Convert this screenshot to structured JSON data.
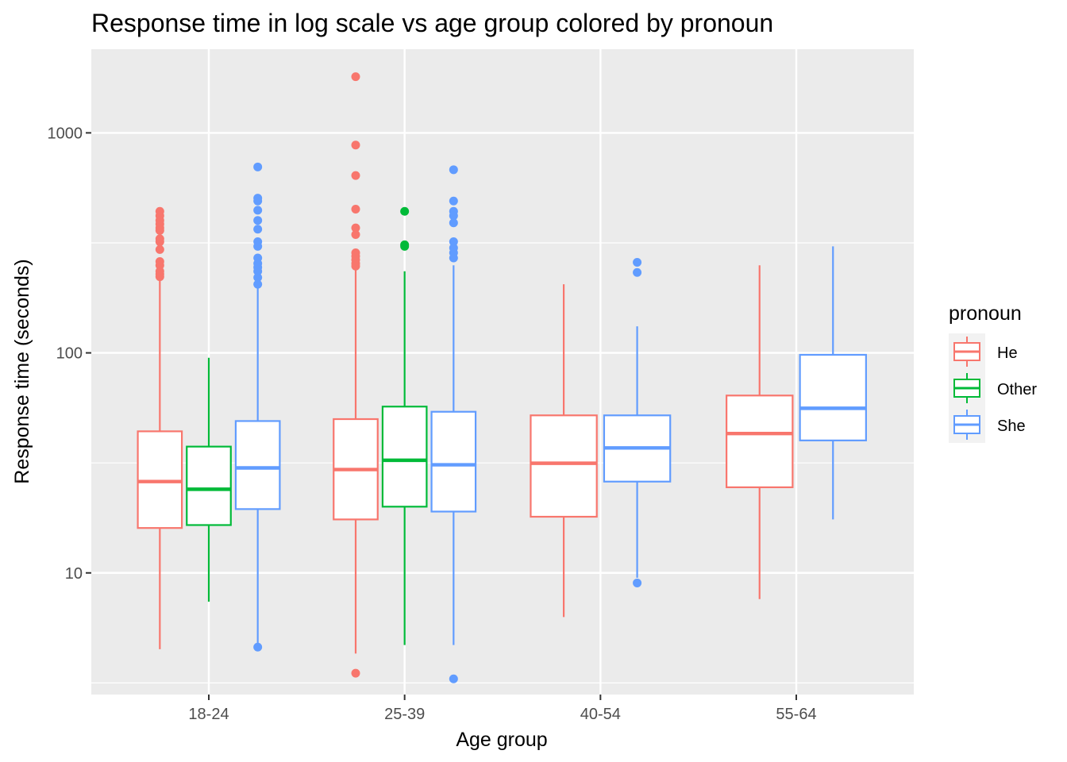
{
  "chart_data": {
    "type": "boxplot",
    "title": "Response time in log scale vs age group colored by pronoun",
    "xlabel": "Age group",
    "ylabel": "Response time (seconds)",
    "y_scale": "log10",
    "ylim": [
      2.8,
      2400
    ],
    "y_ticks": [
      10,
      100,
      1000
    ],
    "y_tick_labels": [
      "10",
      "100",
      "1000"
    ],
    "grid": true,
    "categories": [
      "18-24",
      "25-39",
      "40-54",
      "55-64"
    ],
    "legend": {
      "title": "pronoun",
      "position": "right"
    },
    "series": [
      {
        "name": "He",
        "color": "#F8766D",
        "boxes": [
          {
            "category": "18-24",
            "q1": 16,
            "median": 26,
            "q3": 44,
            "whisker_low": 4.5,
            "whisker_high": 215,
            "outliers": [
              440,
              420,
              400,
              385,
              370,
              360,
              330,
              320,
              295,
              260,
              250,
              235,
              228,
              222
            ]
          },
          {
            "category": "25-39",
            "q1": 17.5,
            "median": 29.5,
            "q3": 50,
            "whisker_low": 4.3,
            "whisker_high": 245,
            "outliers": [
              1800,
              880,
              640,
              450,
              370,
              345,
              285,
              275,
              265,
              255,
              248,
              3.5
            ]
          },
          {
            "category": "40-54",
            "q1": 18,
            "median": 31.5,
            "q3": 52,
            "whisker_low": 6.3,
            "whisker_high": 205,
            "outliers": []
          },
          {
            "category": "55-64",
            "q1": 24.5,
            "median": 43,
            "q3": 64,
            "whisker_low": 7.6,
            "whisker_high": 250,
            "outliers": []
          }
        ]
      },
      {
        "name": "Other",
        "color": "#00BA38",
        "boxes": [
          {
            "category": "18-24",
            "q1": 16.5,
            "median": 24,
            "q3": 37.5,
            "whisker_low": 7.4,
            "whisker_high": 95,
            "outliers": []
          },
          {
            "category": "25-39",
            "q1": 20,
            "median": 32.5,
            "q3": 57,
            "whisker_low": 4.7,
            "whisker_high": 235,
            "outliers": [
              440,
              310,
              305
            ]
          }
        ]
      },
      {
        "name": "She",
        "color": "#619CFF",
        "boxes": [
          {
            "category": "18-24",
            "q1": 19.5,
            "median": 30,
            "q3": 49,
            "whisker_low": 4.7,
            "whisker_high": 200,
            "outliers": [
              700,
              505,
              490,
              445,
              400,
              365,
              320,
              305,
              270,
              255,
              245,
              235,
              220,
              205,
              4.6
            ]
          },
          {
            "category": "25-39",
            "q1": 19,
            "median": 31,
            "q3": 54,
            "whisker_low": 4.7,
            "whisker_high": 250,
            "outliers": [
              680,
              490,
              440,
              420,
              390,
              320,
              300,
              285,
              270,
              3.3
            ]
          },
          {
            "category": "40-54",
            "q1": 26,
            "median": 37,
            "q3": 52,
            "whisker_low": 9.5,
            "whisker_high": 132,
            "outliers": [
              258,
              232,
              9
            ]
          },
          {
            "category": "55-64",
            "q1": 40,
            "median": 56,
            "q3": 98,
            "whisker_low": 17.5,
            "whisker_high": 305,
            "outliers": []
          }
        ]
      }
    ]
  }
}
